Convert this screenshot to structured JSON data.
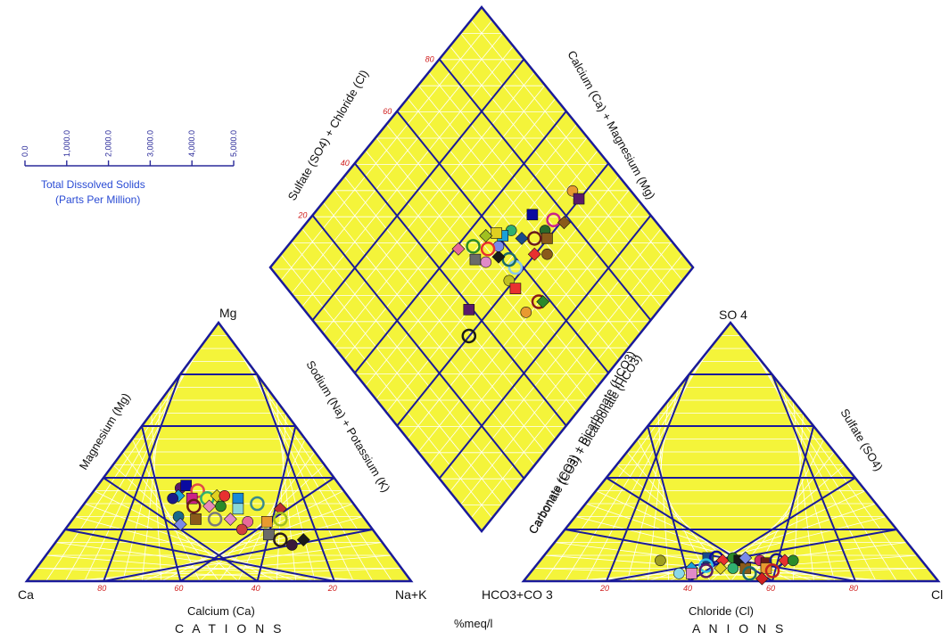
{
  "chart_data": {
    "type": "scatter",
    "title": "",
    "units_label": "%meq/l",
    "tds_scale": {
      "label_line1": "Total Dissolved Solids",
      "label_line2": "(Parts Per Million)",
      "ticks": [
        "0.0",
        "1,000.0",
        "2,000.0",
        "3,000.0",
        "4,000.0",
        "5,000.0"
      ]
    },
    "cation_triangle": {
      "section_label": "C A T I O N S",
      "corners": {
        "left": "Ca",
        "top": "Mg",
        "right": "Na+K"
      },
      "axis_labels": {
        "bottom": "Calcium (Ca)",
        "left": "Magnesium (Mg)",
        "right": "Sodium (Na) + Potassium (K)"
      },
      "ticks": [
        "80",
        "60",
        "40",
        "20"
      ],
      "points": [
        {
          "ca": 42,
          "mg": 36,
          "color": "#5a1a6a"
        },
        {
          "ca": 40,
          "mg": 37,
          "color": "#0a0aa0"
        },
        {
          "ca": 38,
          "mg": 35,
          "color": "#e04848"
        },
        {
          "ca": 44,
          "mg": 33,
          "color": "#1aa0d8"
        },
        {
          "ca": 46,
          "mg": 32,
          "color": "#1a1a8a"
        },
        {
          "ca": 41,
          "mg": 32,
          "color": "#cc2288"
        },
        {
          "ca": 37,
          "mg": 32,
          "color": "#30b070"
        },
        {
          "ca": 34,
          "mg": 33,
          "color": "#e0d020"
        },
        {
          "ca": 32,
          "mg": 33,
          "color": "#e83030"
        },
        {
          "ca": 29,
          "mg": 32,
          "color": "#1a8ad8"
        },
        {
          "ca": 42,
          "mg": 29,
          "color": "#6a1a1a"
        },
        {
          "ca": 38,
          "mg": 29,
          "color": "#e88ab8"
        },
        {
          "ca": 35,
          "mg": 29,
          "color": "#2a8a2a"
        },
        {
          "ca": 31,
          "mg": 28,
          "color": "#8ad8d8"
        },
        {
          "ca": 25,
          "mg": 30,
          "color": "#3a8a8a"
        },
        {
          "ca": 20,
          "mg": 28,
          "color": "#c03030"
        },
        {
          "ca": 48,
          "mg": 25,
          "color": "#1a6a8a"
        },
        {
          "ca": 44,
          "mg": 24,
          "color": "#8a5a1a"
        },
        {
          "ca": 39,
          "mg": 24,
          "color": "#7a7a7a"
        },
        {
          "ca": 35,
          "mg": 24,
          "color": "#e08ac8"
        },
        {
          "ca": 31,
          "mg": 23,
          "color": "#e86a9a"
        },
        {
          "ca": 26,
          "mg": 23,
          "color": "#e89a30"
        },
        {
          "ca": 22,
          "mg": 24,
          "color": "#a0c020"
        },
        {
          "ca": 49,
          "mg": 22,
          "color": "#7a8ae8"
        },
        {
          "ca": 34,
          "mg": 20,
          "color": "#d04040"
        },
        {
          "ca": 28,
          "mg": 18,
          "color": "#6a6a6a"
        },
        {
          "ca": 26,
          "mg": 16,
          "color": "#2a1a1a"
        },
        {
          "ca": 20,
          "mg": 16,
          "color": "#1a1a1a"
        },
        {
          "ca": 24,
          "mg": 14,
          "color": "#3a1a3a"
        }
      ]
    },
    "anion_triangle": {
      "section_label": "A N I O N S",
      "corners": {
        "left": "HCO3+CO 3",
        "top": "SO 4",
        "right": "Cl"
      },
      "axis_labels": {
        "bottom": "Chloride (Cl)",
        "left": "Carbonate (CO3) + Bicarbonate (HCO3)",
        "right": "Sulfate (SO4)"
      },
      "ticks": [
        "20",
        "40",
        "60",
        "80"
      ],
      "points": [
        {
          "cl": 29,
          "so4": 8,
          "color": "#a0a020"
        },
        {
          "cl": 40,
          "so4": 9,
          "color": "#1a4a8a"
        },
        {
          "cl": 42,
          "so4": 9,
          "color": "#0a0aa0"
        },
        {
          "cl": 44,
          "so4": 8,
          "color": "#e83030"
        },
        {
          "cl": 46,
          "so4": 9,
          "color": "#2a8a2a"
        },
        {
          "cl": 48,
          "so4": 8,
          "color": "#1a1a1a"
        },
        {
          "cl": 41,
          "so4": 6,
          "color": "#30c0e8"
        },
        {
          "cl": 38,
          "so4": 5,
          "color": "#1aa0d8"
        },
        {
          "cl": 36,
          "so4": 3,
          "color": "#8ad8e8"
        },
        {
          "cl": 39,
          "so4": 3,
          "color": "#e08ac8"
        },
        {
          "cl": 42,
          "so4": 4,
          "color": "#5a1a6a"
        },
        {
          "cl": 45,
          "so4": 5,
          "color": "#e0d020"
        },
        {
          "cl": 48,
          "so4": 5,
          "color": "#30b070"
        },
        {
          "cl": 51,
          "so4": 5,
          "color": "#8a5a1a"
        },
        {
          "cl": 53,
          "so4": 3,
          "color": "#1a6a6a"
        },
        {
          "cl": 49,
          "so4": 9,
          "color": "#7a8ae8"
        },
        {
          "cl": 53,
          "so4": 8,
          "color": "#d02a6a"
        },
        {
          "cl": 55,
          "so4": 7,
          "color": "#6a1a1a"
        },
        {
          "cl": 57,
          "so4": 8,
          "color": "#1a1a8a"
        },
        {
          "cl": 59,
          "so4": 8,
          "color": "#e83030"
        },
        {
          "cl": 61,
          "so4": 8,
          "color": "#2a8a2a"
        },
        {
          "cl": 56,
          "so4": 5,
          "color": "#e89a30"
        },
        {
          "cl": 58,
          "so4": 4,
          "color": "#c02020"
        },
        {
          "cl": 57,
          "so4": 1,
          "color": "#d02020"
        }
      ]
    },
    "diamond": {
      "axis_labels": {
        "upper_left": "Sulfate (SO4) + Chloride (Cl)",
        "upper_right": "Calcium (Ca) + Magnesium (Mg)",
        "lower_right": "Carbonate (CO3) + Bicarbonate (HCO3)"
      },
      "ticks": [
        "20",
        "40",
        "60",
        "80"
      ],
      "points": [
        {
          "so4cl": 57,
          "camg": 86,
          "color": "#e89a30"
        },
        {
          "so4cl": 60,
          "camg": 86,
          "color": "#5a1a6a"
        },
        {
          "so4cl": 58,
          "camg": 76,
          "color": "#cc2288"
        },
        {
          "so4cl": 61,
          "camg": 78,
          "color": "#8a5a1a"
        },
        {
          "so4cl": 58,
          "camg": 72,
          "color": "#2a6a2a"
        },
        {
          "so4cl": 60,
          "camg": 71,
          "color": "#8a5a1a"
        },
        {
          "so4cl": 57,
          "camg": 68,
          "color": "#6a1a1a"
        },
        {
          "so4cl": 60,
          "camg": 65,
          "color": "#e83030"
        },
        {
          "so4cl": 63,
          "camg": 68,
          "color": "#8a5a1a"
        },
        {
          "so4cl": 52,
          "camg": 72,
          "color": "#0a0aa0"
        },
        {
          "so4cl": 58,
          "camg": 58,
          "color": "#8ac8e8"
        },
        {
          "so4cl": 54,
          "camg": 65,
          "color": "#1a4a8a"
        },
        {
          "so4cl": 50,
          "camg": 64,
          "color": "#30b070"
        },
        {
          "so4cl": 49,
          "camg": 61,
          "color": "#1aa0d8"
        },
        {
          "so4cl": 55,
          "camg": 58,
          "color": "#1a6a6a"
        },
        {
          "so4cl": 52,
          "camg": 56,
          "color": "#1a1a1a"
        },
        {
          "so4cl": 50,
          "camg": 58,
          "color": "#7a8ae8"
        },
        {
          "so4cl": 47,
          "camg": 60,
          "color": "#e0d020"
        },
        {
          "so4cl": 48,
          "camg": 55,
          "color": "#e83030"
        },
        {
          "so4cl": 45,
          "camg": 57,
          "color": "#a0c020"
        },
        {
          "so4cl": 50,
          "camg": 52,
          "color": "#e08ac8"
        },
        {
          "so4cl": 47,
          "camg": 50,
          "color": "#6a6a6a"
        },
        {
          "so4cl": 44,
          "camg": 52,
          "color": "#2a8a2a"
        },
        {
          "so4cl": 41,
          "camg": 48,
          "color": "#e86a9a"
        },
        {
          "so4cl": 59,
          "camg": 54,
          "color": "#c0c020"
        },
        {
          "so4cl": 62,
          "camg": 54,
          "color": "#e83030"
        },
        {
          "so4cl": 70,
          "camg": 57,
          "color": "#8a1a1a"
        },
        {
          "so4cl": 71,
          "camg": 58,
          "color": "#2a8a2a"
        },
        {
          "so4cl": 69,
          "camg": 52,
          "color": "#e89a30"
        },
        {
          "so4cl": 55,
          "camg": 39,
          "color": "#5a1a6a"
        },
        {
          "so4cl": 60,
          "camg": 34,
          "color": "#1a1a1a"
        }
      ]
    }
  }
}
